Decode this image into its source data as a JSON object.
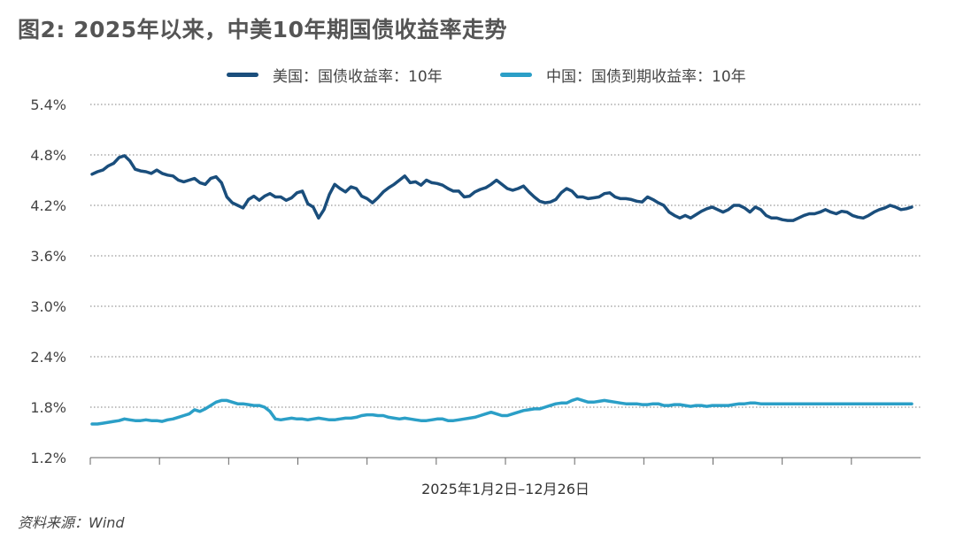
{
  "title": "图2: 2025年以来，中美10年期国债收益率走势",
  "source": "资料来源：Wind",
  "colors": {
    "us": "#1a4e7c",
    "cn": "#2b9fc7",
    "grid": "#7f7f7f",
    "axis": "#666666"
  },
  "chart_data": {
    "type": "line",
    "title": "图2: 2025年以来，中美10年期国债收益率走势",
    "xlabel": "2025年1月2日–12月26日",
    "ylabel": "",
    "ylim": [
      1.2,
      5.4
    ],
    "yticks": [
      "5.4%",
      "4.8%",
      "4.2%",
      "3.6%",
      "3.0%",
      "2.4%",
      "1.8%",
      "1.2%"
    ],
    "grid": "horizontal-dotted",
    "legend_position": "top-center",
    "x_range": [
      "2025-01-02",
      "2025-12-26"
    ],
    "x_tick_count": 12,
    "series": [
      {
        "name": "美国：国债收益率：10年",
        "color": "#1a4e7c",
        "values": [
          4.57,
          4.6,
          4.62,
          4.67,
          4.7,
          4.77,
          4.79,
          4.73,
          4.63,
          4.61,
          4.6,
          4.58,
          4.62,
          4.58,
          4.56,
          4.55,
          4.5,
          4.48,
          4.5,
          4.52,
          4.47,
          4.45,
          4.52,
          4.54,
          4.47,
          4.3,
          4.23,
          4.2,
          4.17,
          4.27,
          4.31,
          4.26,
          4.31,
          4.34,
          4.3,
          4.3,
          4.26,
          4.29,
          4.35,
          4.37,
          4.22,
          4.18,
          4.05,
          4.15,
          4.33,
          4.45,
          4.4,
          4.36,
          4.42,
          4.4,
          4.31,
          4.28,
          4.23,
          4.29,
          4.36,
          4.41,
          4.45,
          4.5,
          4.55,
          4.47,
          4.48,
          4.44,
          4.5,
          4.47,
          4.46,
          4.44,
          4.4,
          4.37,
          4.37,
          4.3,
          4.31,
          4.36,
          4.39,
          4.41,
          4.45,
          4.5,
          4.45,
          4.4,
          4.38,
          4.4,
          4.43,
          4.36,
          4.3,
          4.25,
          4.23,
          4.24,
          4.27,
          4.35,
          4.4,
          4.37,
          4.3,
          4.3,
          4.28,
          4.29,
          4.3,
          4.34,
          4.35,
          4.3,
          4.28,
          4.28,
          4.27,
          4.25,
          4.24,
          4.3,
          4.27,
          4.23,
          4.2,
          4.12,
          4.08,
          4.05,
          4.08,
          4.05,
          4.09,
          4.13,
          4.16,
          4.18,
          4.15,
          4.12,
          4.15,
          4.2,
          4.2,
          4.17,
          4.12,
          4.18,
          4.15,
          4.08,
          4.05,
          4.05,
          4.03,
          4.02,
          4.02,
          4.05,
          4.08,
          4.1,
          4.1,
          4.12,
          4.15,
          4.12,
          4.1,
          4.13,
          4.12,
          4.08,
          4.06,
          4.05,
          4.08,
          4.12,
          4.15,
          4.17,
          4.2,
          4.18,
          4.15,
          4.16,
          4.18
        ],
        "seed_points_note": ""
      },
      {
        "name": "中国：国债到期收益率：10年",
        "color": "#2b9fc7",
        "values": [
          1.6,
          1.6,
          1.61,
          1.62,
          1.63,
          1.64,
          1.66,
          1.65,
          1.64,
          1.64,
          1.65,
          1.64,
          1.64,
          1.63,
          1.65,
          1.66,
          1.68,
          1.7,
          1.72,
          1.77,
          1.75,
          1.78,
          1.82,
          1.86,
          1.88,
          1.88,
          1.86,
          1.84,
          1.84,
          1.83,
          1.82,
          1.82,
          1.8,
          1.75,
          1.66,
          1.65,
          1.66,
          1.67,
          1.66,
          1.66,
          1.65,
          1.66,
          1.67,
          1.66,
          1.65,
          1.65,
          1.66,
          1.67,
          1.67,
          1.68,
          1.7,
          1.71,
          1.71,
          1.7,
          1.7,
          1.68,
          1.67,
          1.66,
          1.67,
          1.66,
          1.65,
          1.64,
          1.64,
          1.65,
          1.66,
          1.66,
          1.64,
          1.64,
          1.65,
          1.66,
          1.67,
          1.68,
          1.7,
          1.72,
          1.74,
          1.72,
          1.7,
          1.7,
          1.72,
          1.74,
          1.76,
          1.77,
          1.78,
          1.78,
          1.8,
          1.82,
          1.84,
          1.85,
          1.85,
          1.88,
          1.9,
          1.88,
          1.86,
          1.86,
          1.87,
          1.88,
          1.87,
          1.86,
          1.85,
          1.84,
          1.84,
          1.84,
          1.83,
          1.83,
          1.84,
          1.84,
          1.82,
          1.82,
          1.83,
          1.83,
          1.82,
          1.81,
          1.82,
          1.82,
          1.81,
          1.82,
          1.82,
          1.82,
          1.82,
          1.83,
          1.84,
          1.84,
          1.85,
          1.85,
          1.84,
          1.84,
          1.84,
          1.84,
          1.84,
          1.84,
          1.84,
          1.84,
          1.84,
          1.84,
          1.84,
          1.84,
          1.84,
          1.84,
          1.84,
          1.84,
          1.84,
          1.84,
          1.84,
          1.84,
          1.84,
          1.84,
          1.84,
          1.84,
          1.84,
          1.84,
          1.84,
          1.84,
          1.84
        ]
      }
    ]
  }
}
